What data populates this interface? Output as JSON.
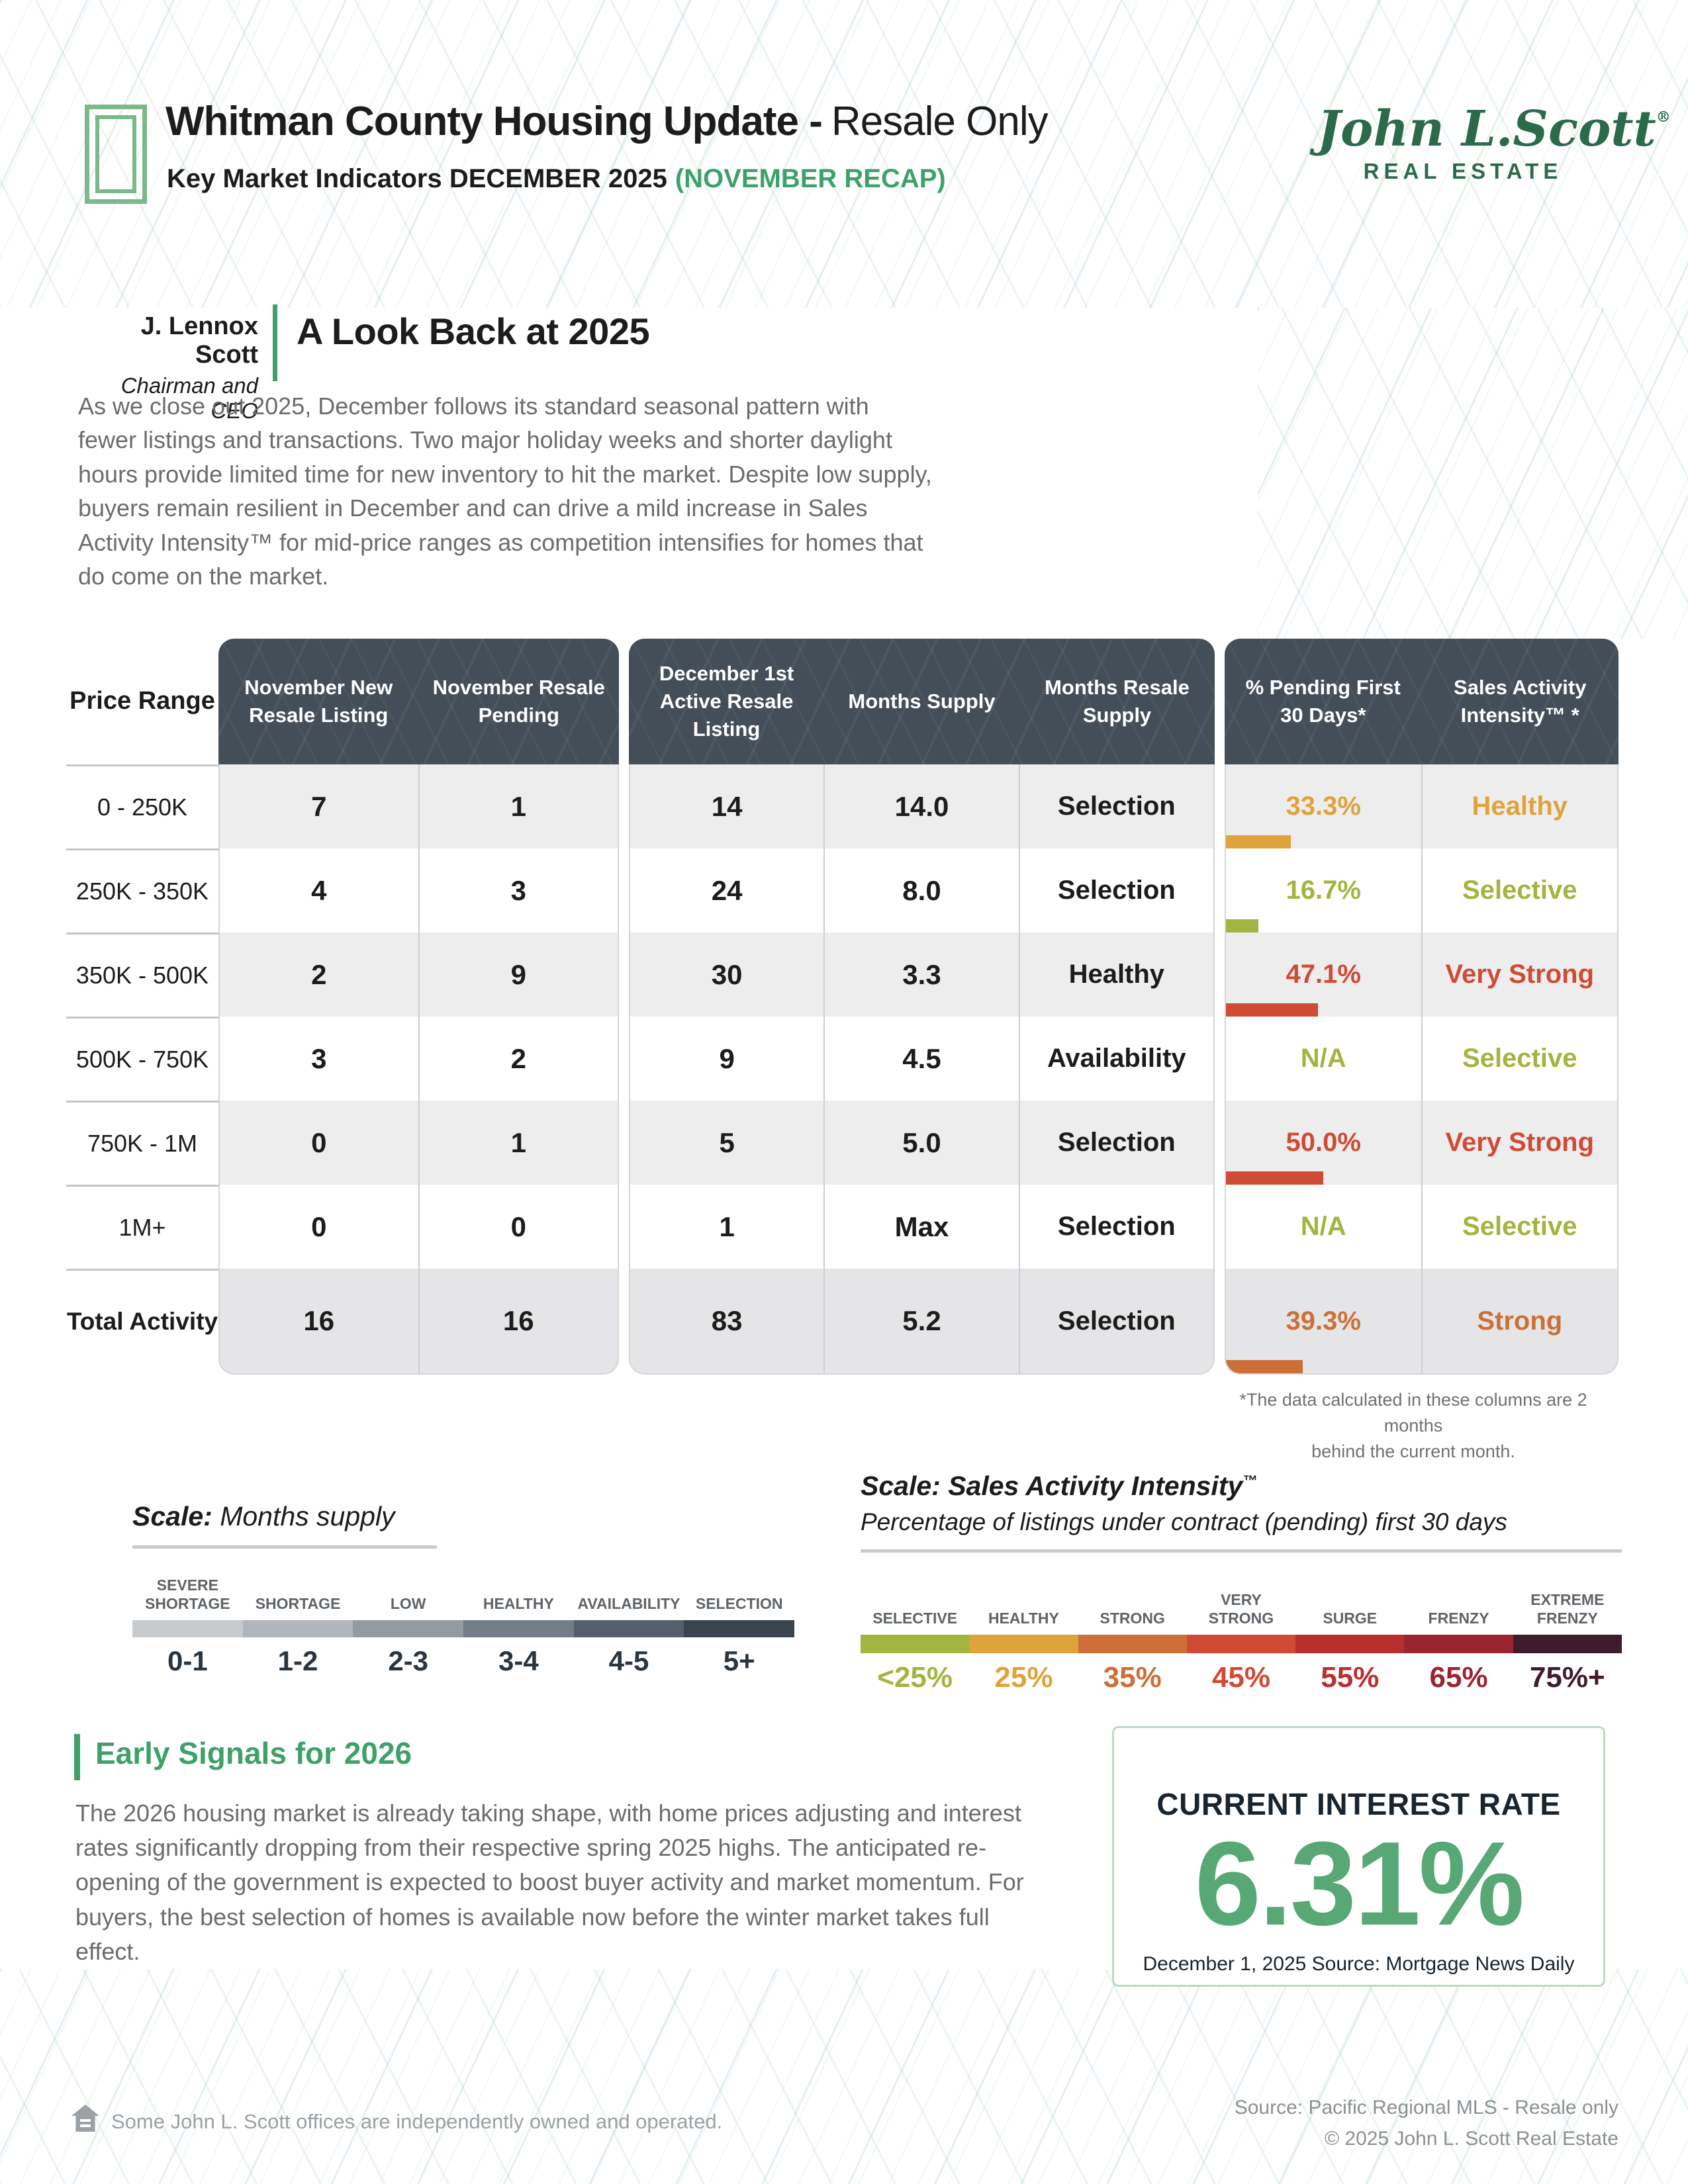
{
  "header": {
    "title_bold": "Whitman County Housing Update -",
    "title_light": "Resale Only",
    "subtitle_bold": "Key Market Indicators DECEMBER 2025",
    "subtitle_green": "(NOVEMBER RECAP)",
    "logo_name": "John L.Scott",
    "logo_reg": "®",
    "logo_sub": "REAL ESTATE"
  },
  "byline": {
    "name": "J. Lennox Scott",
    "role": "Chairman and CEO",
    "heading": "A Look Back at 2025"
  },
  "intro": "As we close out 2025, December follows its standard seasonal pattern with fewer listings and transactions. Two major holiday weeks and shorter daylight hours provide limited time for new inventory to hit the market. Despite low supply, buyers remain resilient in December and can drive a mild increase in Sales Activity Intensity™ for mid-price ranges as competition intensifies for homes that do come on the market.",
  "table": {
    "price_header": "Price Range",
    "col_headers": [
      "November New Resale Listing",
      "November Resale Pending",
      "December 1st Active Resale Listing",
      "Months Supply",
      "Months Resale Supply",
      "% Pending First 30 Days*",
      "Sales Activity Intensity™ *"
    ],
    "rows": [
      {
        "price": "0 - 250K",
        "c1": "7",
        "c2": "1",
        "c3": "14",
        "c4": "14.0",
        "c5": "Selection",
        "pct": "33.3%",
        "pct_color": "#dfa33c",
        "bar": 33.3,
        "sai": "Healthy",
        "sai_color": "#dfa33c"
      },
      {
        "price": "250K - 350K",
        "c1": "4",
        "c2": "3",
        "c3": "24",
        "c4": "8.0",
        "c5": "Selection",
        "pct": "16.7%",
        "pct_color": "#a4b440",
        "bar": 16.7,
        "sai": "Selective",
        "sai_color": "#a4b440"
      },
      {
        "price": "350K - 500K",
        "c1": "2",
        "c2": "9",
        "c3": "30",
        "c4": "3.3",
        "c5": "Healthy",
        "pct": "47.1%",
        "pct_color": "#d04b35",
        "bar": 47.1,
        "sai": "Very Strong",
        "sai_color": "#d04b35"
      },
      {
        "price": "500K - 750K",
        "c1": "3",
        "c2": "2",
        "c3": "9",
        "c4": "4.5",
        "c5": "Availability",
        "pct": "N/A",
        "pct_color": "#a4b440",
        "bar": 0,
        "sai": "Selective",
        "sai_color": "#a4b440"
      },
      {
        "price": "750K - 1M",
        "c1": "0",
        "c2": "1",
        "c3": "5",
        "c4": "5.0",
        "c5": "Selection",
        "pct": "50.0%",
        "pct_color": "#d04b35",
        "bar": 50.0,
        "sai": "Very Strong",
        "sai_color": "#d04b35"
      },
      {
        "price": "1M+",
        "c1": "0",
        "c2": "0",
        "c3": "1",
        "c4": "Max",
        "c5": "Selection",
        "pct": "N/A",
        "pct_color": "#a4b440",
        "bar": 0,
        "sai": "Selective",
        "sai_color": "#a4b440"
      },
      {
        "price": "Total Activity",
        "c1": "16",
        "c2": "16",
        "c3": "83",
        "c4": "5.2",
        "c5": "Selection",
        "pct": "39.3%",
        "pct_color": "#cc7038",
        "bar": 39.3,
        "sai": "Strong",
        "sai_color": "#cc7038"
      }
    ],
    "footnote_line1": "*The data calculated in these columns are 2 months",
    "footnote_line2": "behind the current month."
  },
  "scale_supply": {
    "title_bold": "Scale:",
    "title_rest": " Months supply",
    "segments": [
      {
        "label": "SEVERE SHORTAGE",
        "range": "0-1",
        "color": "#c7cbce"
      },
      {
        "label": "SHORTAGE",
        "range": "1-2",
        "color": "#b0b6bb"
      },
      {
        "label": "LOW",
        "range": "2-3",
        "color": "#939ba2"
      },
      {
        "label": "HEALTHY",
        "range": "3-4",
        "color": "#727d87"
      },
      {
        "label": "AVAILABILITY",
        "range": "4-5",
        "color": "#555f6b"
      },
      {
        "label": "SELECTION",
        "range": "5+",
        "color": "#3a444f"
      }
    ]
  },
  "scale_sai": {
    "title_bold": "Scale: Sales Activity Intensity",
    "tm": "™",
    "subtitle": "Percentage of listings under contract (pending) first 30 days",
    "segments": [
      {
        "label": "SELECTIVE",
        "pct": "<25%",
        "color": "#a4b440"
      },
      {
        "label": "HEALTHY",
        "pct": "25%",
        "color": "#dfa33c"
      },
      {
        "label": "STRONG",
        "pct": "35%",
        "color": "#cc7038"
      },
      {
        "label": "VERY STRONG",
        "pct": "45%",
        "color": "#d04b35"
      },
      {
        "label": "SURGE",
        "pct": "55%",
        "color": "#b92f2e"
      },
      {
        "label": "FRENZY",
        "pct": "65%",
        "color": "#9a2531"
      },
      {
        "label": "EXTREME FRENZY",
        "pct": "75%+",
        "color": "#3f1c2d"
      }
    ]
  },
  "early": {
    "heading": "Early Signals for 2026",
    "body": "The 2026 housing market is already taking shape, with home prices adjusting and interest rates significantly dropping from their respective spring 2025 highs. The anticipated re-opening of the government is expected to boost buyer activity and market momentum. For buyers, the best selection of homes is available now before the winter market takes full effect."
  },
  "rate": {
    "heading": "CURRENT INTEREST RATE",
    "value": "6.31%",
    "caption": "December 1, 2025 Source: Mortgage News Daily"
  },
  "footer": {
    "left": "Some John L. Scott offices are independently owned and operated.",
    "right1": "Source: Pacific Regional MLS - Resale only",
    "right2": "© 2025 John L. Scott Real Estate"
  }
}
